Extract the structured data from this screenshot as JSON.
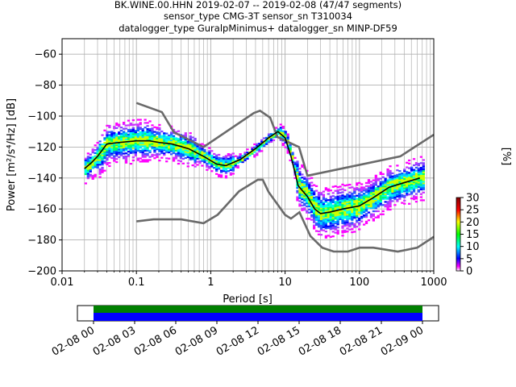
{
  "header": {
    "title_lines": [
      "BK.WINE.00.HHN   2019-02-07 -- 2019-02-08  (47/47 segments)",
      "sensor_type CMG-3T sensor_sn T310034",
      "datalogger_type GuralpMinimus+ datalogger_sn MINP-DF59"
    ]
  },
  "chart_data": {
    "type": "heatmap",
    "xscale": "log",
    "xlim": [
      0.01,
      1000
    ],
    "ylim": [
      -200,
      -50
    ],
    "xlabel": "Period [s]",
    "ylabel": "Power [m²/s⁴/Hz] [dB]",
    "x_ticks": [
      0.01,
      0.1,
      1,
      10,
      100,
      1000
    ],
    "x_tick_labels": [
      "0.01",
      "0.1",
      "1",
      "10",
      "100",
      "1000"
    ],
    "y_ticks": [
      -200,
      -180,
      -160,
      -140,
      -120,
      -100,
      -80,
      -60
    ],
    "y_tick_labels": [
      "−200",
      "−180",
      "−160",
      "−140",
      "−120",
      "−100",
      "−80",
      "−60"
    ],
    "grid": true,
    "colorbar": {
      "label": "[%]",
      "range": [
        0,
        30
      ],
      "ticks": [
        0,
        5,
        10,
        15,
        20,
        25,
        30
      ]
    },
    "noise_model_high": {
      "period": [
        0.1,
        0.22,
        0.32,
        0.8,
        3.8,
        4.6,
        6.3,
        7.9,
        15.4,
        20,
        354.8,
        1000
      ],
      "power": [
        -91.5,
        -97.4,
        -110.5,
        -120,
        -98,
        -96.5,
        -101,
        -113.5,
        -120,
        -138.5,
        -126,
        -112
      ]
    },
    "noise_model_low": {
      "period": [
        0.1,
        0.17,
        0.4,
        0.8,
        1.24,
        2.4,
        4.3,
        5,
        6,
        10,
        12,
        15.6,
        21.9,
        31.6,
        45,
        70,
        101,
        154,
        328,
        600,
        1000
      ],
      "power": [
        -168,
        -166.7,
        -166.7,
        -169.2,
        -163.7,
        -148.6,
        -141.1,
        -141.1,
        -149,
        -163.8,
        -166.2,
        -162.1,
        -177.5,
        -185,
        -187.5,
        -187.5,
        -185,
        -185,
        -187.5,
        -185,
        -178
      ]
    },
    "mode_curve": {
      "period": [
        0.02,
        0.025,
        0.03,
        0.04,
        0.06,
        0.1,
        0.15,
        0.2,
        0.3,
        0.5,
        0.8,
        1.2,
        1.6,
        2.5,
        4,
        6,
        8,
        10,
        12,
        15,
        20,
        25,
        30,
        40,
        60,
        100,
        150,
        250,
        400,
        650
      ],
      "power": [
        -134,
        -130,
        -126,
        -118,
        -117,
        -116,
        -116,
        -117,
        -118,
        -121,
        -126,
        -131,
        -132,
        -128,
        -121,
        -114,
        -110,
        -114,
        -126,
        -145,
        -152,
        -160,
        -163,
        -162,
        -160,
        -158,
        -153,
        -146,
        -143,
        -140
      ]
    },
    "time_bar": {
      "start_label": "02-08 00",
      "tick_labels": [
        "02-08 00",
        "02-08 03",
        "02-08 06",
        "02-08 09",
        "02-08 12",
        "02-08 15",
        "02-08 18",
        "02-08 21",
        "02-09 00"
      ],
      "top_color": "#008000",
      "bottom_color": "#0000ff"
    }
  }
}
